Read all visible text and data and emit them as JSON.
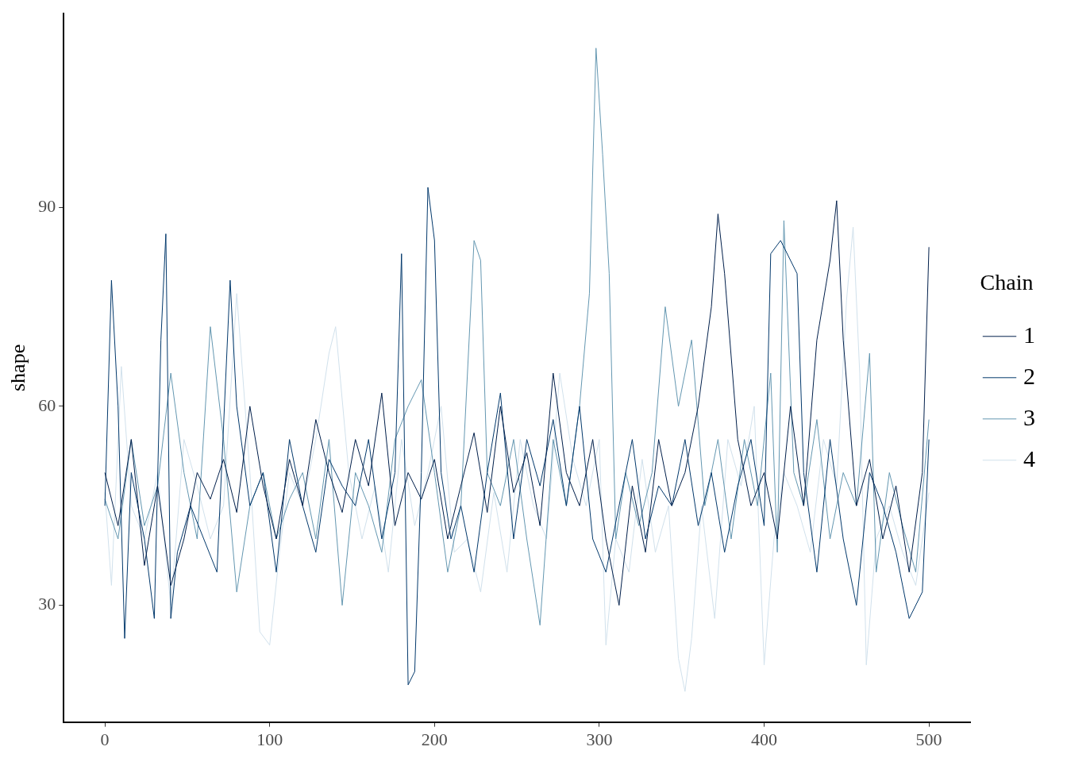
{
  "chart_data": {
    "type": "line",
    "ylabel": "shape",
    "legend_title": "Chain",
    "legend": "right",
    "grid": false,
    "marker": "none",
    "line_style": "solid",
    "xlim": [
      -25,
      525
    ],
    "xticks": [
      0,
      100,
      200,
      300,
      400,
      500
    ],
    "ylim": [
      12.4,
      119.2
    ],
    "yticks": [
      30,
      60,
      90
    ],
    "series": [
      {
        "name": "1",
        "color": "#011f4b",
        "x": [
          0,
          8,
          16,
          24,
          32,
          40,
          48,
          56,
          64,
          72,
          80,
          88,
          96,
          104,
          112,
          120,
          128,
          136,
          144,
          152,
          160,
          168,
          176,
          184,
          192,
          200,
          208,
          216,
          224,
          232,
          240,
          248,
          256,
          264,
          272,
          280,
          288,
          296,
          304,
          312,
          320,
          328,
          336,
          344,
          352,
          360,
          368,
          372,
          376,
          384,
          392,
          400,
          408,
          416,
          424,
          432,
          440,
          444,
          448,
          456,
          464,
          472,
          480,
          488,
          496,
          500
        ],
        "values": [
          50,
          42,
          55,
          36,
          48,
          33,
          40,
          50,
          46,
          52,
          44,
          60,
          48,
          40,
          52,
          45,
          58,
          50,
          44,
          55,
          48,
          62,
          42,
          50,
          46,
          52,
          40,
          48,
          56,
          44,
          60,
          47,
          53,
          42,
          65,
          50,
          45,
          55,
          40,
          30,
          48,
          38,
          55,
          45,
          50,
          60,
          75,
          89,
          80,
          55,
          45,
          50,
          40,
          60,
          45,
          70,
          82,
          91,
          70,
          45,
          52,
          40,
          48,
          35,
          50,
          84
        ]
      },
      {
        "name": "2",
        "color": "#03396c",
        "x": [
          0,
          4,
          8,
          12,
          16,
          24,
          30,
          34,
          37,
          40,
          44,
          52,
          60,
          68,
          76,
          80,
          88,
          96,
          104,
          112,
          120,
          128,
          136,
          144,
          152,
          160,
          168,
          176,
          180,
          184,
          188,
          192,
          196,
          200,
          204,
          210,
          216,
          224,
          232,
          240,
          248,
          256,
          264,
          272,
          280,
          288,
          296,
          304,
          312,
          320,
          328,
          336,
          344,
          352,
          360,
          368,
          376,
          384,
          392,
          400,
          404,
          410,
          416,
          420,
          424,
          432,
          440,
          448,
          456,
          464,
          472,
          480,
          488,
          496,
          500
        ],
        "values": [
          45,
          79,
          60,
          25,
          50,
          40,
          28,
          70,
          86,
          28,
          38,
          45,
          40,
          35,
          79,
          60,
          45,
          50,
          35,
          55,
          45,
          38,
          52,
          48,
          45,
          55,
          40,
          50,
          83,
          18,
          20,
          50,
          93,
          85,
          50,
          40,
          45,
          35,
          50,
          62,
          40,
          55,
          48,
          58,
          45,
          60,
          40,
          35,
          45,
          55,
          40,
          48,
          45,
          55,
          42,
          50,
          38,
          48,
          55,
          42,
          83,
          85,
          82,
          80,
          50,
          35,
          55,
          40,
          30,
          50,
          45,
          38,
          28,
          32,
          55
        ]
      },
      {
        "name": "3",
        "color": "#6497b1",
        "x": [
          0,
          8,
          16,
          24,
          32,
          40,
          48,
          56,
          64,
          72,
          80,
          88,
          96,
          104,
          112,
          120,
          128,
          136,
          144,
          152,
          160,
          168,
          176,
          184,
          192,
          200,
          208,
          216,
          224,
          228,
          232,
          240,
          248,
          256,
          264,
          272,
          280,
          288,
          294,
          298,
          302,
          306,
          310,
          316,
          324,
          332,
          340,
          348,
          356,
          364,
          372,
          380,
          388,
          396,
          404,
          408,
          412,
          418,
          424,
          432,
          440,
          448,
          456,
          464,
          468,
          476,
          484,
          492,
          500
        ],
        "values": [
          46,
          40,
          55,
          42,
          48,
          65,
          50,
          40,
          72,
          55,
          32,
          45,
          50,
          40,
          46,
          50,
          40,
          55,
          30,
          50,
          45,
          38,
          55,
          60,
          64,
          50,
          35,
          45,
          85,
          82,
          50,
          45,
          55,
          40,
          27,
          55,
          45,
          60,
          77,
          114,
          98,
          80,
          40,
          50,
          42,
          50,
          75,
          60,
          70,
          45,
          55,
          40,
          55,
          45,
          65,
          38,
          88,
          50,
          45,
          58,
          40,
          50,
          45,
          68,
          35,
          50,
          42,
          35,
          58
        ]
      },
      {
        "name": "4",
        "color": "#d1e1ec",
        "x": [
          0,
          4,
          10,
          16,
          24,
          32,
          40,
          48,
          56,
          64,
          72,
          80,
          88,
          94,
          100,
          106,
          112,
          120,
          128,
          136,
          140,
          148,
          156,
          164,
          172,
          180,
          188,
          196,
          204,
          212,
          220,
          228,
          236,
          244,
          252,
          260,
          268,
          276,
          284,
          292,
          300,
          304,
          310,
          318,
          326,
          334,
          342,
          348,
          352,
          356,
          362,
          370,
          378,
          386,
          394,
          400,
          406,
          412,
          420,
          428,
          436,
          444,
          450,
          454,
          458,
          462,
          468,
          476,
          484,
          492,
          500
        ],
        "values": [
          47,
          33,
          66,
          45,
          40,
          50,
          30,
          55,
          48,
          40,
          45,
          77,
          50,
          26,
          24,
          38,
          50,
          45,
          55,
          68,
          72,
          50,
          40,
          48,
          35,
          55,
          42,
          50,
          60,
          38,
          40,
          32,
          47,
          35,
          55,
          45,
          40,
          65,
          52,
          45,
          55,
          24,
          40,
          35,
          52,
          38,
          45,
          22,
          17,
          25,
          45,
          28,
          55,
          48,
          60,
          21,
          40,
          50,
          45,
          38,
          55,
          48,
          76,
          87,
          65,
          21,
          40,
          45,
          38,
          33,
          47
        ]
      }
    ]
  }
}
